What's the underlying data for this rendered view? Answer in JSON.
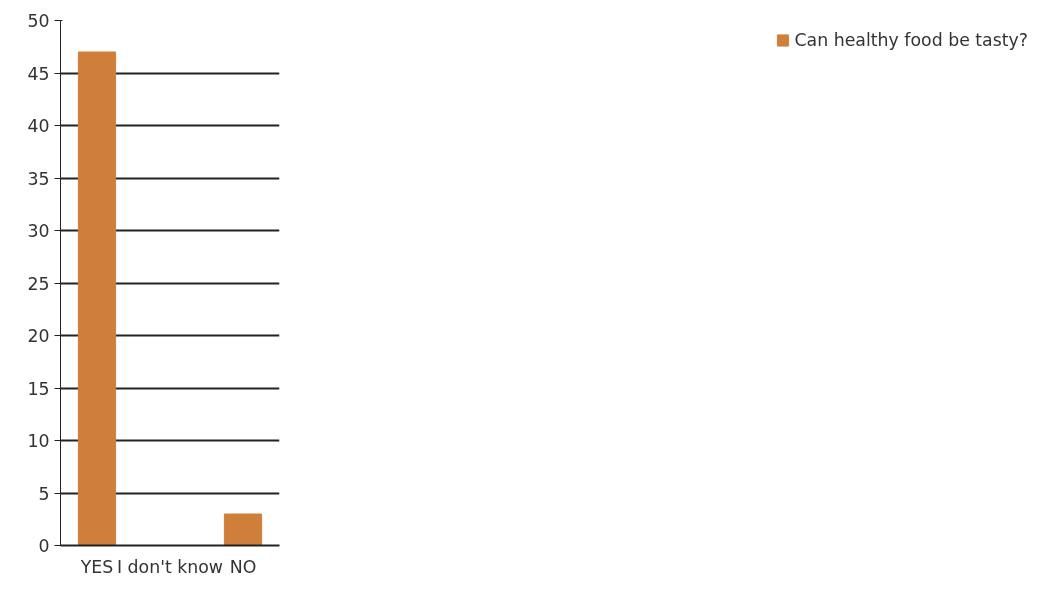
{
  "chart_data": {
    "type": "bar",
    "categories": [
      "YES",
      "I don't know",
      "NO"
    ],
    "series": [
      {
        "name": "Can healthy food be tasty?",
        "color": "#d07f3a",
        "values": [
          47,
          0,
          3
        ]
      }
    ],
    "ylim": [
      0,
      50
    ],
    "yticks": [
      0,
      5,
      10,
      15,
      20,
      25,
      30,
      35,
      40,
      45,
      50
    ],
    "grid": "y",
    "legend": "right"
  }
}
